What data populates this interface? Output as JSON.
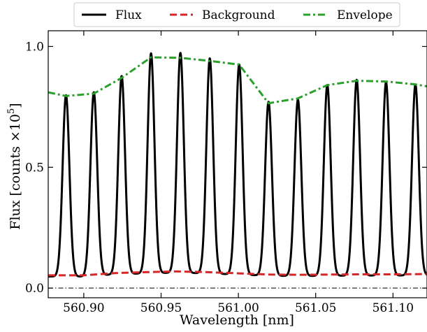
{
  "chart_data": {
    "type": "line",
    "xlabel": "Wavelength [nm]",
    "ylabel_prefix": "Flux [counts ×10",
    "ylabel_exp": "5",
    "ylabel_suffix": "]",
    "xlim": [
      560.877,
      561.122
    ],
    "ylim": [
      -0.04,
      1.065
    ],
    "x_ticks": [
      560.9,
      560.95,
      561.0,
      561.05,
      561.1
    ],
    "x_tick_labels": [
      "560.90",
      "560.95",
      "561.00",
      "561.05",
      "561.10"
    ],
    "y_ticks": [
      0.0,
      0.5,
      1.0
    ],
    "y_tick_labels": [
      "0.0",
      "0.5",
      "1.0"
    ],
    "zero_line": 0.0,
    "legend": {
      "placement": "top-center-outside",
      "entries": [
        {
          "label": "Flux",
          "color": "#000000",
          "style": "solid"
        },
        {
          "label": "Background",
          "color": "#d62728",
          "style": "dashed"
        },
        {
          "label": "Envelope",
          "color": "#2ca02c",
          "style": "dashdot"
        }
      ]
    },
    "series": [
      {
        "name": "Flux",
        "peak_centers": [
          560.8885,
          560.9065,
          560.9245,
          560.9435,
          560.9625,
          560.9815,
          561.0005,
          561.0195,
          561.0385,
          561.0575,
          561.0765,
          561.0955,
          561.1145
        ],
        "peak_heights": [
          0.8,
          0.81,
          0.87,
          0.96,
          0.96,
          0.94,
          0.92,
          0.77,
          0.78,
          0.84,
          0.86,
          0.85,
          0.84
        ],
        "peak_sigma_nm": 0.0022
      },
      {
        "name": "Background",
        "x": [
          560.877,
          560.9,
          560.92,
          560.94,
          560.96,
          560.98,
          561.0,
          561.02,
          561.04,
          561.06,
          561.08,
          561.1,
          561.122
        ],
        "y": [
          0.053,
          0.053,
          0.062,
          0.066,
          0.069,
          0.066,
          0.061,
          0.056,
          0.055,
          0.056,
          0.057,
          0.057,
          0.058
        ]
      },
      {
        "name": "Envelope",
        "x": [
          560.877,
          560.8885,
          560.9065,
          560.9245,
          560.9435,
          560.9625,
          560.9815,
          561.0005,
          561.0195,
          561.0385,
          561.0575,
          561.0765,
          561.0955,
          561.1145,
          561.122
        ],
        "y": [
          0.81,
          0.795,
          0.805,
          0.87,
          0.955,
          0.953,
          0.94,
          0.925,
          0.765,
          0.785,
          0.84,
          0.858,
          0.855,
          0.843,
          0.835
        ]
      }
    ]
  }
}
